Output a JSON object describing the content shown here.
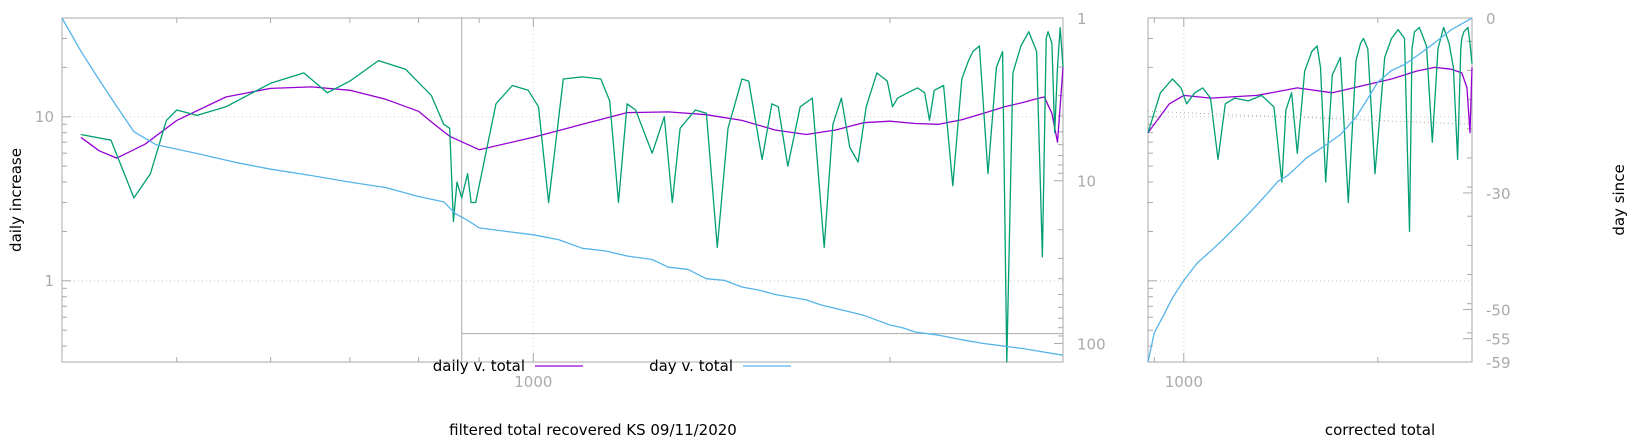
{
  "chart_data": [
    {
      "type": "line",
      "xlabel": "filtered total recovered KS 09/11/2020",
      "ylabel": "daily increase",
      "y2label": "",
      "x_scale": "log",
      "y_scale": "log",
      "y2_scale": "log",
      "xlim": [
        400,
        2800
      ],
      "ylim": [
        0.32,
        40
      ],
      "y2lim": [
        1,
        130
      ],
      "y2_reversed": true,
      "x_ticks": [
        1000
      ],
      "y_ticks": [
        1,
        10
      ],
      "y2_ticks": [
        1,
        10,
        100
      ],
      "grid": true,
      "legend": {
        "position": "bottom-center",
        "entries": [
          "daily v. total",
          "day v. total"
        ]
      },
      "reference_x": 870,
      "reference_y2": 87,
      "series": [
        {
          "name": "daily v. total",
          "color": "#9400d3",
          "axis": "y",
          "x": [
            415,
            430,
            445,
            470,
            500,
            550,
            600,
            650,
            700,
            750,
            800,
            820,
            850,
            900,
            1000,
            1100,
            1200,
            1300,
            1400,
            1500,
            1600,
            1700,
            1800,
            1900,
            2000,
            2100,
            2200,
            2300,
            2400,
            2500,
            2600,
            2650,
            2700,
            2740,
            2770,
            2800
          ],
          "y": [
            7.5,
            6.2,
            5.6,
            6.8,
            9.5,
            13.2,
            14.9,
            15.2,
            14.5,
            12.8,
            10.8,
            9.3,
            7.6,
            6.3,
            7.5,
            9.0,
            10.6,
            10.7,
            10.3,
            9.5,
            8.3,
            7.8,
            8.3,
            9.2,
            9.4,
            9.1,
            9.0,
            9.6,
            10.5,
            11.5,
            12.3,
            12.8,
            13.2,
            10.5,
            7.0,
            20.0
          ]
        },
        {
          "name": "",
          "color": "#009e73",
          "axis": "y",
          "x": [
            415,
            440,
            460,
            475,
            490,
            500,
            520,
            550,
            600,
            640,
            670,
            700,
            740,
            780,
            820,
            840,
            850,
            856,
            862,
            870,
            880,
            886,
            894,
            930,
            960,
            990,
            1010,
            1030,
            1060,
            1100,
            1140,
            1160,
            1180,
            1200,
            1220,
            1260,
            1290,
            1310,
            1330,
            1370,
            1400,
            1430,
            1460,
            1480,
            1500,
            1520,
            1560,
            1590,
            1610,
            1640,
            1680,
            1720,
            1760,
            1790,
            1820,
            1850,
            1880,
            1910,
            1950,
            1990,
            2010,
            2030,
            2070,
            2110,
            2140,
            2160,
            2180,
            2220,
            2260,
            2300,
            2330,
            2350,
            2380,
            2420,
            2460,
            2490,
            2510,
            2540,
            2580,
            2620,
            2660,
            2690,
            2710,
            2720,
            2740,
            2755,
            2770,
            2785,
            2800
          ],
          "y": [
            7.8,
            7.2,
            3.2,
            4.5,
            9.5,
            11.0,
            10.2,
            11.5,
            16.0,
            18.5,
            14.0,
            16.5,
            22.0,
            19.5,
            13.5,
            9.0,
            8.5,
            2.3,
            4.0,
            3.2,
            4.5,
            3.0,
            3.0,
            12.0,
            15.5,
            14.5,
            11.5,
            3.0,
            17.0,
            17.5,
            17.0,
            12.5,
            3.0,
            12.0,
            11.0,
            6.0,
            10.0,
            3.0,
            8.5,
            11.0,
            10.5,
            1.6,
            8.5,
            12.0,
            17.0,
            16.5,
            5.5,
            12.0,
            11.5,
            5.0,
            11.5,
            13.0,
            1.6,
            9.0,
            13.0,
            6.5,
            5.3,
            11.5,
            18.5,
            16.5,
            11.5,
            13.0,
            14.0,
            15.0,
            14.0,
            9.5,
            14.5,
            15.5,
            3.8,
            17.0,
            22.0,
            25.0,
            27.0,
            4.5,
            20.0,
            25.0,
            0.2,
            18.5,
            27.0,
            33.0,
            25.0,
            1.4,
            30.0,
            33.0,
            28.0,
            8.0,
            20.0,
            35.0,
            20.0
          ]
        },
        {
          "name": "day v. total",
          "color": "#56b4e9",
          "axis": "y2",
          "x": [
            400,
            415,
            430,
            445,
            460,
            480,
            520,
            560,
            600,
            650,
            700,
            750,
            800,
            840,
            860,
            880,
            900,
            950,
            1000,
            1050,
            1100,
            1150,
            1200,
            1260,
            1300,
            1350,
            1400,
            1450,
            1500,
            1550,
            1600,
            1700,
            1750,
            1800,
            1850,
            1900,
            1950,
            2000,
            2050,
            2100,
            2200,
            2300,
            2400,
            2500,
            2600,
            2700,
            2800
          ],
          "y2": [
            1,
            1.6,
            2.4,
            3.5,
            5.0,
            6.0,
            6.8,
            7.7,
            8.5,
            9.3,
            10.2,
            11.0,
            12.5,
            13.5,
            16.0,
            17.5,
            19.5,
            20.5,
            21.5,
            23.0,
            26.0,
            27.0,
            29.0,
            30.5,
            34.0,
            35.0,
            40.0,
            41.0,
            45.0,
            47.0,
            50.0,
            54.0,
            58.0,
            61.0,
            64.0,
            67.0,
            72.0,
            77.0,
            80.0,
            85.0,
            89.0,
            95.0,
            100.0,
            104.0,
            108.0,
            113.0,
            118.0
          ]
        }
      ]
    },
    {
      "type": "line",
      "xlabel": "corrected total",
      "ylabel": "",
      "y2label": "day since",
      "x_scale": "log",
      "y_scale": "log",
      "xlim": [
        880,
        2800
      ],
      "ylim": [
        0.32,
        40
      ],
      "y2lim": [
        -59,
        0
      ],
      "x_ticks": [
        1000
      ],
      "y2_ticks": [
        0,
        -30,
        -50,
        -55,
        -59
      ],
      "grid": true,
      "series": [
        {
          "name": "",
          "color": "#9400d3",
          "axis": "y",
          "x": [
            880,
            950,
            1000,
            1100,
            1300,
            1500,
            1700,
            1900,
            2100,
            2300,
            2450,
            2600,
            2700,
            2750,
            2780,
            2800
          ],
          "y": [
            8.0,
            12.0,
            13.5,
            13.0,
            13.5,
            15.0,
            14.0,
            15.5,
            17.0,
            19.0,
            20.0,
            19.5,
            18.5,
            15.0,
            8.0,
            20.0
          ]
        },
        {
          "name": "",
          "color": "#009e73",
          "axis": "y",
          "x": [
            880,
            920,
            960,
            990,
            1010,
            1040,
            1070,
            1100,
            1130,
            1160,
            1200,
            1260,
            1320,
            1380,
            1420,
            1440,
            1470,
            1500,
            1540,
            1580,
            1610,
            1630,
            1660,
            1700,
            1750,
            1800,
            1850,
            1880,
            1900,
            1930,
            1980,
            2050,
            2100,
            2150,
            2200,
            2240,
            2260,
            2280,
            2320,
            2380,
            2430,
            2480,
            2530,
            2580,
            2620,
            2660,
            2690,
            2700,
            2720,
            2740,
            2760,
            2780,
            2800
          ],
          "y": [
            8.0,
            14.0,
            17.0,
            15.0,
            12.0,
            14.0,
            15.0,
            13.0,
            5.5,
            12.0,
            13.0,
            12.5,
            13.5,
            11.5,
            4.0,
            11.0,
            14.0,
            6.0,
            19.0,
            25.0,
            27.0,
            20.0,
            4.0,
            18.0,
            23.0,
            3.0,
            22.0,
            28.0,
            30.0,
            26.0,
            4.5,
            23.0,
            30.0,
            34.0,
            30.0,
            2.0,
            26.0,
            33.0,
            35.0,
            27.0,
            7.0,
            26.0,
            35.0,
            28.0,
            20.0,
            5.5,
            26.0,
            30.0,
            33.0,
            34.0,
            35.0,
            28.0,
            21.0
          ]
        },
        {
          "name": "",
          "color": "#56b4e9",
          "axis": "y2",
          "x": [
            880,
            900,
            930,
            960,
            1000,
            1050,
            1100,
            1150,
            1200,
            1250,
            1300,
            1350,
            1400,
            1450,
            1500,
            1550,
            1600,
            1650,
            1700,
            1750,
            1800,
            1850,
            1900,
            1950,
            2000,
            2050,
            2100,
            2200,
            2300,
            2400,
            2500,
            2600,
            2700,
            2750,
            2800
          ],
          "y2": [
            -59,
            -54,
            -51,
            -48,
            -45,
            -42,
            -40,
            -38,
            -36,
            -34,
            -32,
            -30,
            -28,
            -27,
            -25.5,
            -24,
            -23,
            -22,
            -21,
            -20,
            -18.5,
            -17,
            -15,
            -13,
            -11,
            -10,
            -9,
            -8,
            -6.5,
            -5,
            -3.5,
            -2,
            -1,
            -0.5,
            0
          ]
        },
        {
          "name": "",
          "color": "#aaaaaa",
          "axis": "y",
          "dotted": true,
          "x": [
            880,
            2800
          ],
          "y": [
            10.8,
            9.0
          ]
        }
      ]
    }
  ]
}
